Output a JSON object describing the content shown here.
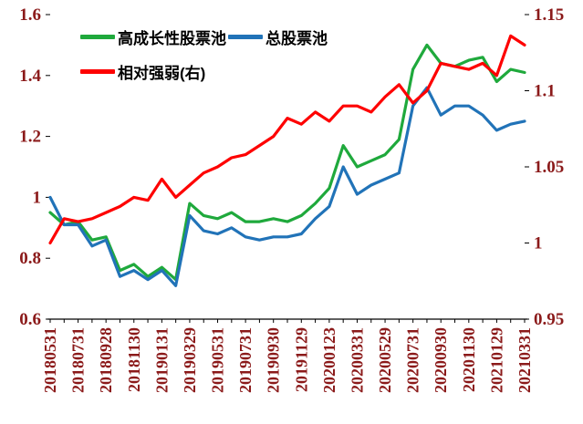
{
  "chart_data": {
    "type": "line",
    "x_count": 35,
    "x_labels": [
      "20180531",
      "20180731",
      "20180928",
      "20181130",
      "20190131",
      "20190329",
      "20190531",
      "20190731",
      "20190930",
      "20191129",
      "20200123",
      "20200331",
      "20200529",
      "20200731",
      "20200930",
      "20201130",
      "20210129",
      "20210331"
    ],
    "x_label_every": 2,
    "left_axis": {
      "min": 0.6,
      "max": 1.6,
      "ticks": [
        "0.6",
        "0.8",
        "1",
        "1.2",
        "1.4",
        "1.6"
      ]
    },
    "right_axis": {
      "min": 0.95,
      "max": 1.15,
      "ticks": [
        "0.95",
        "1",
        "1.05",
        "1.1",
        "1.15"
      ]
    },
    "grid": false,
    "legend_position": "top-left",
    "series": [
      {
        "name": "高成长性股票池",
        "color": "#1fa93c",
        "axis": "left",
        "values": [
          0.95,
          0.91,
          0.92,
          0.86,
          0.87,
          0.76,
          0.78,
          0.74,
          0.77,
          0.73,
          0.98,
          0.94,
          0.93,
          0.95,
          0.92,
          0.92,
          0.93,
          0.92,
          0.94,
          0.98,
          1.03,
          1.17,
          1.1,
          1.12,
          1.14,
          1.19,
          1.42,
          1.5,
          1.44,
          1.43,
          1.45,
          1.46,
          1.38,
          1.42,
          1.41
        ]
      },
      {
        "name": "总股票池",
        "color": "#2173b8",
        "axis": "left",
        "values": [
          1.0,
          0.91,
          0.91,
          0.84,
          0.86,
          0.74,
          0.76,
          0.73,
          0.76,
          0.71,
          0.94,
          0.89,
          0.88,
          0.9,
          0.87,
          0.86,
          0.87,
          0.87,
          0.88,
          0.93,
          0.97,
          1.1,
          1.01,
          1.04,
          1.06,
          1.08,
          1.3,
          1.36,
          1.27,
          1.3,
          1.3,
          1.27,
          1.22,
          1.24,
          1.25
        ]
      },
      {
        "name": "相对强弱(右)",
        "color": "#fe0000",
        "axis": "right",
        "values": [
          1.0,
          1.016,
          1.014,
          1.016,
          1.02,
          1.024,
          1.03,
          1.028,
          1.042,
          1.03,
          1.038,
          1.046,
          1.05,
          1.056,
          1.058,
          1.064,
          1.07,
          1.082,
          1.078,
          1.086,
          1.08,
          1.09,
          1.09,
          1.086,
          1.096,
          1.104,
          1.092,
          1.1,
          1.118,
          1.116,
          1.114,
          1.118,
          1.11,
          1.136,
          1.13
        ]
      }
    ]
  },
  "colors": {
    "axis_text": "#8b1a1a",
    "axis_line": "#000000",
    "legend_text": "#000000"
  }
}
